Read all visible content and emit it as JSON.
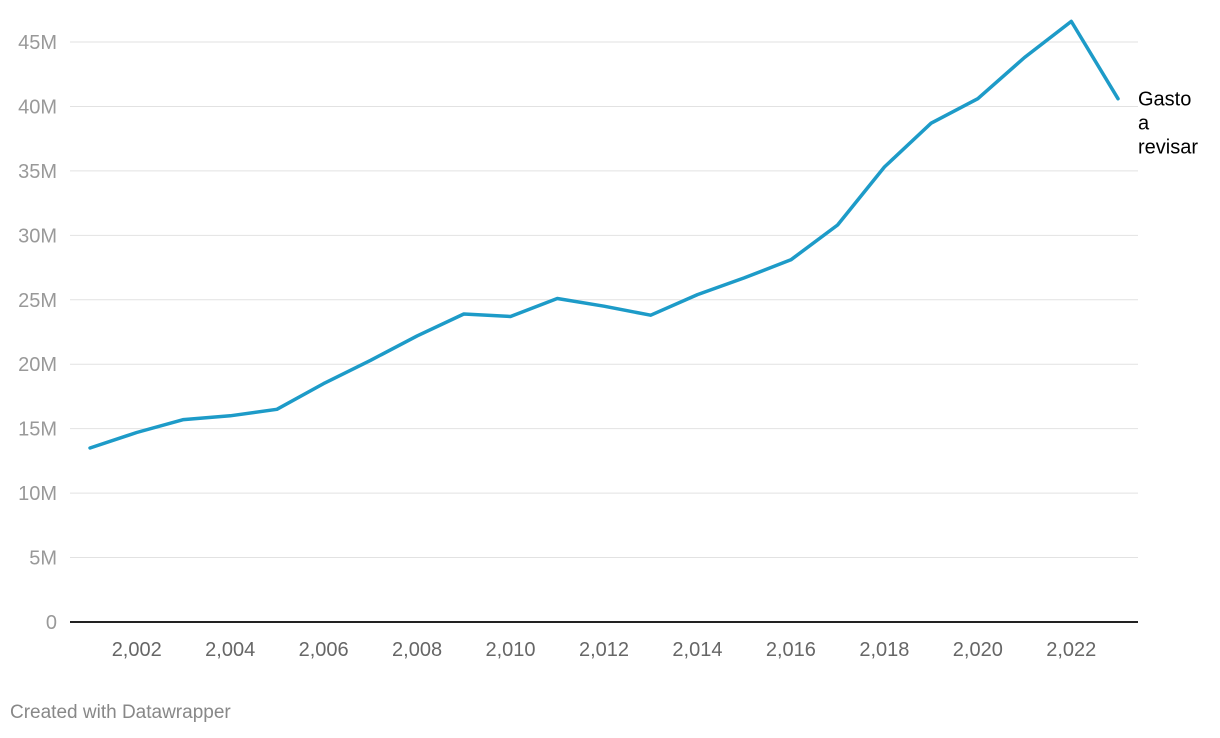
{
  "chart_data": {
    "type": "line",
    "title": "",
    "xlabel": "",
    "ylabel": "",
    "x": [
      2001,
      2002,
      2003,
      2004,
      2005,
      2006,
      2007,
      2008,
      2009,
      2010,
      2011,
      2012,
      2013,
      2014,
      2015,
      2016,
      2017,
      2018,
      2019,
      2020,
      2021,
      2022,
      2023
    ],
    "series": [
      {
        "name": "Gasto a revisar",
        "label_lines": [
          "Gasto",
          "a",
          "revisar"
        ],
        "color": "#1d9bc8",
        "values": [
          13.5,
          14.7,
          15.7,
          16.0,
          16.5,
          18.5,
          20.3,
          22.2,
          23.9,
          23.7,
          25.1,
          24.5,
          23.8,
          25.4,
          26.7,
          28.1,
          30.8,
          35.3,
          38.7,
          40.6,
          43.8,
          46.6,
          40.6
        ]
      }
    ],
    "xlim": [
      2001,
      2023
    ],
    "ylim": [
      0,
      45
    ],
    "yticks": [
      0,
      5,
      10,
      15,
      20,
      25,
      30,
      35,
      40,
      45
    ],
    "ytick_labels": [
      "0",
      "5M",
      "10M",
      "15M",
      "20M",
      "25M",
      "30M",
      "35M",
      "40M",
      "45M"
    ],
    "xticks": [
      2002,
      2004,
      2006,
      2008,
      2010,
      2012,
      2014,
      2016,
      2018,
      2020,
      2022
    ],
    "xtick_labels": [
      "2,002",
      "2,004",
      "2,006",
      "2,008",
      "2,010",
      "2,012",
      "2,014",
      "2,016",
      "2,018",
      "2,020",
      "2,022"
    ],
    "grid": true,
    "legend": "direct-label-right"
  },
  "footer": {
    "credit": "Created with Datawrapper"
  }
}
